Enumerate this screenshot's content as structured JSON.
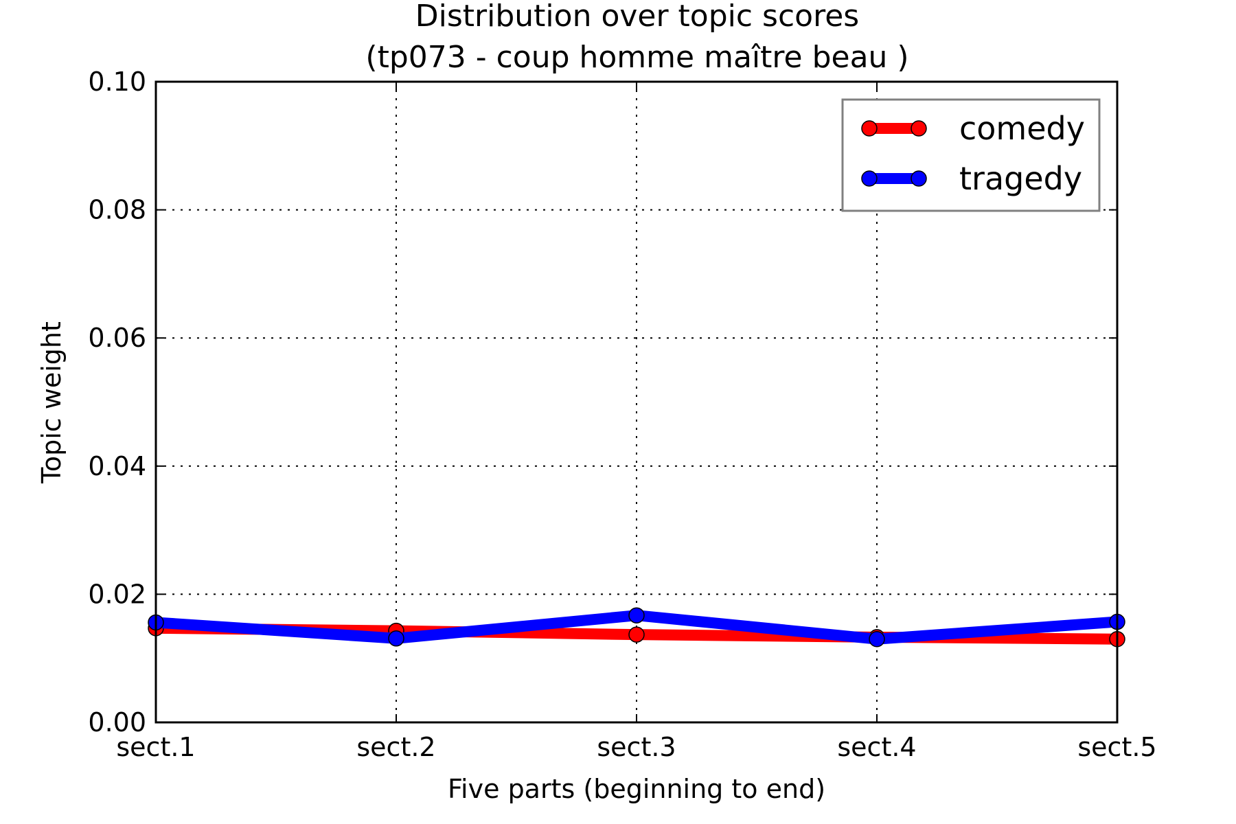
{
  "chart_data": {
    "type": "line",
    "title": "Distribution over topic scores",
    "subtitle": "(tp073 - coup homme maître beau )",
    "xlabel": "Five parts (beginning to end)",
    "ylabel": "Topic weight",
    "categories": [
      "sect.1",
      "sect.2",
      "sect.3",
      "sect.4",
      "sect.5"
    ],
    "yticks": [
      "0.00",
      "0.02",
      "0.04",
      "0.06",
      "0.08",
      "0.10"
    ],
    "ylim": [
      0,
      0.1
    ],
    "grid": true,
    "legend_position": "top-right",
    "series": [
      {
        "name": "comedy",
        "color": "#ff0000",
        "values": [
          0.0147,
          0.0143,
          0.0137,
          0.0133,
          0.013
        ]
      },
      {
        "name": "tragedy",
        "color": "#0000ff",
        "values": [
          0.0156,
          0.0131,
          0.0167,
          0.013,
          0.0157
        ]
      }
    ]
  }
}
